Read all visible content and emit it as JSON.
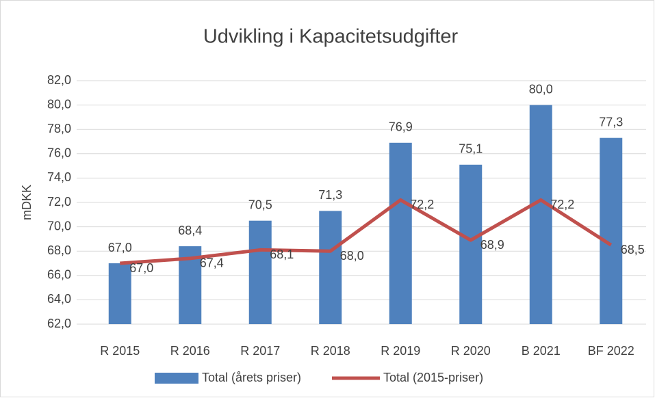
{
  "chart_data": {
    "type": "bar-line",
    "title": "Udvikling i Kapacitetsudgifter",
    "y_label": "mDKK",
    "categories": [
      "R 2015",
      "R 2016",
      "R 2017",
      "R 2018",
      "R 2019",
      "R 2020",
      "B 2021",
      "BF 2022"
    ],
    "series": [
      {
        "name": "Total (årets priser)",
        "type": "bar",
        "color": "#4f81bd",
        "values": [
          67.0,
          68.4,
          70.5,
          71.3,
          76.9,
          75.1,
          80.0,
          77.3
        ],
        "value_labels": [
          "67,0",
          "68,4",
          "70,5",
          "71,3",
          "76,9",
          "75,1",
          "80,0",
          "77,3"
        ]
      },
      {
        "name": "Total (2015-priser)",
        "type": "line",
        "color": "#c0504d",
        "values": [
          67.0,
          67.4,
          68.1,
          68.0,
          72.2,
          68.9,
          72.2,
          68.5
        ],
        "value_labels": [
          "67,0",
          "67,4",
          "68,1",
          "68,0",
          "72,2",
          "68,9",
          "72,2",
          "68,5"
        ]
      }
    ],
    "ylim": [
      62,
      82
    ],
    "yticks": [
      {
        "value": 62,
        "label": "62,0"
      },
      {
        "value": 64,
        "label": "64,0"
      },
      {
        "value": 66,
        "label": "66,0"
      },
      {
        "value": 68,
        "label": "68,0"
      },
      {
        "value": 70,
        "label": "70,0"
      },
      {
        "value": 72,
        "label": "72,0"
      },
      {
        "value": 74,
        "label": "74,0"
      },
      {
        "value": 76,
        "label": "76,0"
      },
      {
        "value": 78,
        "label": "78,0"
      },
      {
        "value": 80,
        "label": "80,0"
      },
      {
        "value": 82,
        "label": "82,0"
      }
    ],
    "grid": true,
    "legend": "bottom"
  }
}
